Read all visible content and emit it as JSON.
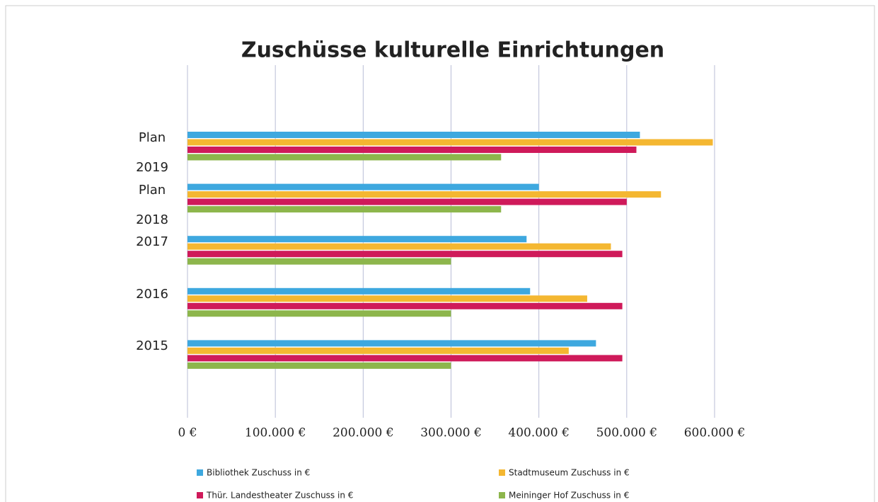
{
  "chart_data": {
    "type": "hbar",
    "title": "Zuschüsse kulturelle Einrichtungen",
    "categories": [
      "Plan 2019",
      "Plan 2018",
      "2017",
      "2016",
      "2015"
    ],
    "series": [
      {
        "name": "Bibliothek Zuschuss in €",
        "color": "#3ea8df",
        "values": [
          515000,
          400000,
          386000,
          390000,
          465000
        ]
      },
      {
        "name": "Stadtmuseum Zuschuss in €",
        "color": "#f4b731",
        "values": [
          598000,
          539000,
          482000,
          455000,
          434000
        ]
      },
      {
        "name": "Thür. Landestheater Zuschuss in €",
        "color": "#cf1a5a",
        "values": [
          511000,
          500000,
          495000,
          495000,
          495000
        ]
      },
      {
        "name": "Meininger Hof Zuschuss in €",
        "color": "#8db64c",
        "values": [
          357000,
          357000,
          300000,
          300000,
          300000
        ]
      }
    ],
    "xlim": [
      0,
      600000
    ],
    "xticks": [
      {
        "value": 0,
        "label": "0 €"
      },
      {
        "value": 100000,
        "label": "100.000 €"
      },
      {
        "value": 200000,
        "label": "200.000 €"
      },
      {
        "value": 300000,
        "label": "300.000 €"
      },
      {
        "value": 400000,
        "label": "400.000 €"
      },
      {
        "value": 500000,
        "label": "500.000 €"
      },
      {
        "value": 600000,
        "label": "600.000 €"
      }
    ],
    "grid": true
  }
}
